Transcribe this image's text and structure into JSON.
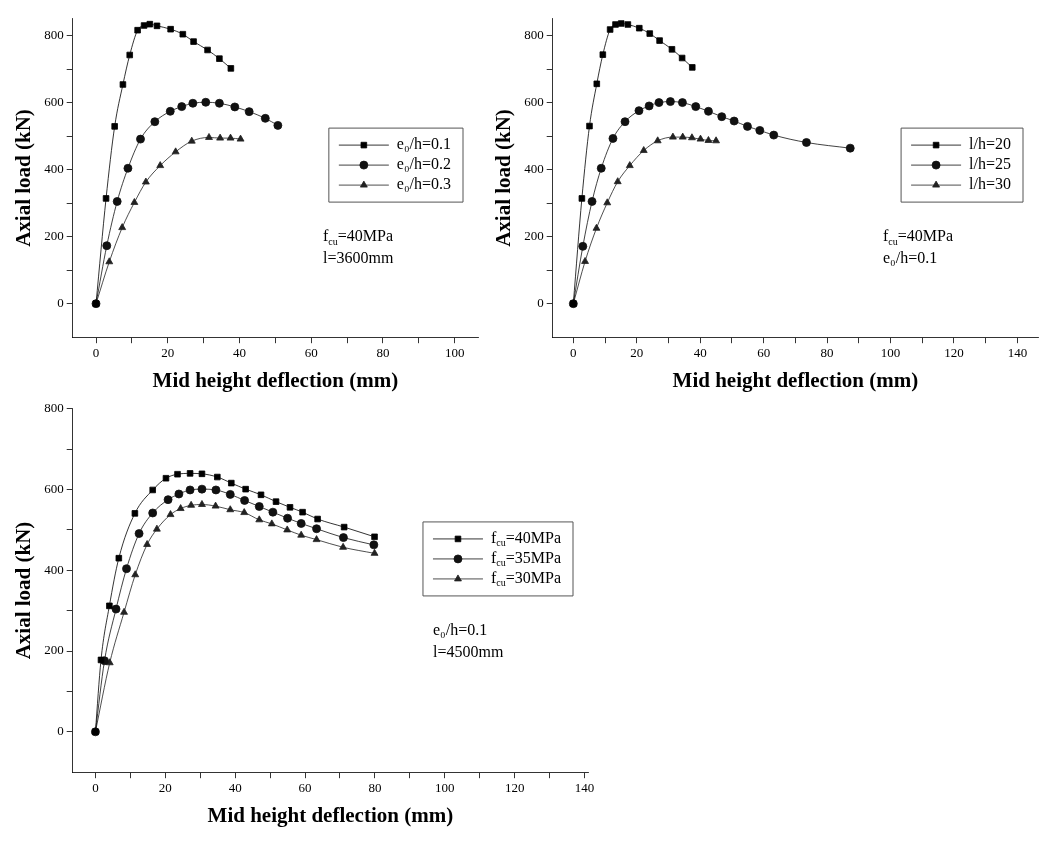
{
  "chart_data": [
    {
      "type": "line",
      "xlabel": "Mid height deflection (mm)",
      "ylabel": "Axial load (kN)",
      "xlim": [
        -6.5,
        106.5
      ],
      "ylim": [
        -100,
        850
      ],
      "xticks": [
        0,
        {
          "value": 10,
          "label": null
        },
        20,
        {
          "value": 30,
          "label": null
        },
        40,
        {
          "value": 50,
          "label": null
        },
        60,
        {
          "value": 70,
          "label": null
        },
        80,
        {
          "value": 90,
          "label": null
        },
        100
      ],
      "yticks": [
        0,
        {
          "value": 100,
          "label": null
        },
        200,
        {
          "value": 300,
          "label": null
        },
        400,
        {
          "value": 500,
          "label": null
        },
        600,
        {
          "value": 700,
          "label": null
        },
        800
      ],
      "grid": false,
      "legend": "right",
      "annotations": [
        "f$_{cu}$=40MPa",
        "l=3600mm"
      ],
      "series": [
        {
          "name": "e₀/h=0.1",
          "color": "#000000",
          "marker": "square",
          "x": [
            0,
            2.8,
            5.2,
            7.5,
            9.4,
            11.6,
            13.4,
            15.0,
            17.0,
            20.8,
            24.2,
            27.2,
            31.1,
            34.4,
            37.6
          ],
          "values": [
            0,
            314,
            529,
            654,
            742,
            816,
            830,
            834,
            829,
            819,
            804,
            782,
            757,
            731,
            702
          ]
        },
        {
          "name": "e₀/h=0.2",
          "color": "#111111",
          "marker": "circle",
          "x": [
            0,
            3.0,
            5.9,
            8.9,
            12.4,
            16.4,
            20.7,
            23.9,
            27.0,
            30.6,
            34.4,
            38.7,
            42.7,
            47.2,
            50.7
          ],
          "values": [
            0,
            173,
            305,
            404,
            491,
            543,
            574,
            588,
            598,
            601,
            598,
            587,
            573,
            553,
            532
          ]
        },
        {
          "name": "e₀/h=0.3",
          "color": "#222222",
          "marker": "triangle",
          "x": [
            0,
            3.7,
            7.3,
            10.7,
            13.9,
            17.9,
            22.2,
            26.7,
            31.5,
            34.6,
            37.5,
            40.3
          ],
          "values": [
            0,
            125,
            227,
            302,
            363,
            412,
            453,
            485,
            496,
            494,
            494,
            491
          ]
        }
      ]
    },
    {
      "type": "line",
      "xlabel": "Mid height deflection (mm)",
      "ylabel": "Axial load (kN)",
      "xlim": [
        -6.5,
        146.5
      ],
      "ylim": [
        -100,
        850
      ],
      "xticks": [
        0,
        {
          "value": 10,
          "label": null
        },
        20,
        {
          "value": 30,
          "label": null
        },
        40,
        {
          "value": 50,
          "label": null
        },
        60,
        {
          "value": 70,
          "label": null
        },
        80,
        {
          "value": 90,
          "label": null
        },
        100,
        {
          "value": 110,
          "label": null
        },
        120,
        {
          "value": 130,
          "label": null
        },
        140
      ],
      "yticks": [
        0,
        {
          "value": 100,
          "label": null
        },
        200,
        {
          "value": 300,
          "label": null
        },
        400,
        {
          "value": 500,
          "label": null
        },
        600,
        {
          "value": 700,
          "label": null
        },
        800
      ],
      "grid": false,
      "legend": "right",
      "annotations": [
        "f$_{cu}$=40MPa",
        "e₀/h=0.1"
      ],
      "series": [
        {
          "name": "l/h=20",
          "color": "#000000",
          "marker": "square",
          "x": [
            0,
            2.7,
            5.1,
            7.4,
            9.3,
            11.6,
            13.3,
            15.1,
            17.2,
            20.8,
            24.1,
            27.2,
            31.1,
            34.3,
            37.5
          ],
          "values": [
            0,
            314,
            530,
            656,
            743,
            818,
            833,
            836,
            833,
            822,
            806,
            785,
            759,
            733,
            705
          ]
        },
        {
          "name": "l/h=25",
          "color": "#111111",
          "marker": "circle",
          "x": [
            0,
            3.0,
            5.9,
            8.8,
            12.5,
            16.3,
            20.7,
            23.9,
            27.0,
            30.6,
            34.4,
            38.6,
            42.6,
            46.8,
            50.7,
            54.9,
            58.8,
            63.2,
            73.5,
            87.3
          ],
          "values": [
            0,
            171,
            305,
            404,
            493,
            543,
            576,
            590,
            600,
            603,
            600,
            588,
            574,
            558,
            545,
            529,
            517,
            503,
            481,
            464
          ]
        },
        {
          "name": "l/h=30",
          "color": "#222222",
          "marker": "triangle",
          "x": [
            0,
            3.7,
            7.3,
            10.7,
            14.0,
            17.8,
            22.2,
            26.6,
            31.4,
            34.5,
            37.4,
            40.1,
            42.6,
            45.0
          ],
          "values": [
            0,
            126,
            225,
            301,
            364,
            412,
            457,
            486,
            497,
            497,
            495,
            491,
            487,
            486
          ]
        }
      ]
    },
    {
      "type": "line",
      "xlabel": "Mid height deflection (mm)",
      "ylabel": "Axial load (kN)",
      "xlim": [
        -6.5,
        141
      ],
      "ylim": [
        -100,
        800
      ],
      "xticks": [
        0,
        {
          "value": 10,
          "label": null
        },
        20,
        {
          "value": 30,
          "label": null
        },
        40,
        {
          "value": 50,
          "label": null
        },
        60,
        {
          "value": 70,
          "label": null
        },
        80,
        {
          "value": 90,
          "label": null
        },
        100,
        {
          "value": 110,
          "label": null
        },
        120,
        {
          "value": 130,
          "label": null
        },
        140
      ],
      "yticks": [
        0,
        {
          "value": 100,
          "label": null
        },
        200,
        {
          "value": 300,
          "label": null
        },
        400,
        {
          "value": 500,
          "label": null
        },
        600,
        {
          "value": 700,
          "label": null
        },
        800
      ],
      "grid": false,
      "legend": "right",
      "annotations": [
        "e₀/h=0.1",
        "l=4500mm"
      ],
      "series": [
        {
          "name": "f$_{cu}$=40MPa",
          "color": "#000000",
          "marker": "square",
          "x": [
            0,
            1.6,
            4.0,
            6.7,
            11.3,
            16.4,
            20.2,
            23.5,
            27.1,
            30.5,
            34.9,
            38.9,
            43.0,
            47.4,
            51.7,
            55.7,
            59.3,
            63.6,
            71.2,
            79.9
          ],
          "values": [
            0,
            178,
            312,
            430,
            541,
            599,
            628,
            638,
            640,
            639,
            631,
            616,
            601,
            587,
            570,
            556,
            544,
            527,
            507,
            483
          ]
        },
        {
          "name": "f$_{cu}$=35MPa",
          "color": "#111111",
          "marker": "circle",
          "x": [
            0,
            2.6,
            5.9,
            8.9,
            12.5,
            16.4,
            20.8,
            23.9,
            27.1,
            30.5,
            34.5,
            38.6,
            42.7,
            46.9,
            50.8,
            55.0,
            58.9,
            63.3,
            71.0,
            79.7
          ],
          "values": [
            0,
            176,
            304,
            404,
            491,
            542,
            575,
            589,
            599,
            601,
            599,
            588,
            573,
            558,
            544,
            529,
            516,
            503,
            481,
            463
          ]
        },
        {
          "name": "f$_{cu}$=30MPa",
          "color": "#222222",
          "marker": "triangle",
          "x": [
            0,
            4.1,
            8.2,
            11.4,
            14.8,
            17.6,
            21.5,
            24.4,
            27.4,
            30.5,
            34.4,
            38.6,
            42.6,
            46.9,
            50.5,
            54.9,
            58.9,
            63.3,
            70.9,
            79.9
          ],
          "values": [
            0,
            171,
            296,
            389,
            464,
            502,
            538,
            553,
            561,
            563,
            559,
            550,
            543,
            525,
            515,
            500,
            487,
            476,
            457,
            442
          ]
        }
      ]
    }
  ]
}
